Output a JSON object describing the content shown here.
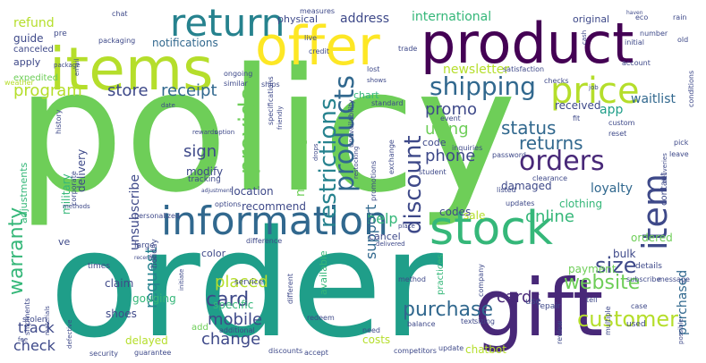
{
  "palette": {
    "background": "#ffffff",
    "colors": [
      "#6ece58",
      "#fde725",
      "#1f9e89",
      "#35b779",
      "#482878",
      "#3e4989",
      "#31688e",
      "#26828e",
      "#b5de2b",
      "#440154"
    ]
  },
  "words": [
    {
      "text": "policy",
      "color": "#6ece58"
    },
    {
      "text": "order",
      "color": "#1f9e89"
    },
    {
      "text": "product",
      "color": "#440154"
    },
    {
      "text": "items",
      "color": "#b5de2b"
    },
    {
      "text": "offer",
      "color": "#fde725"
    },
    {
      "text": "information",
      "color": "#31688e"
    },
    {
      "text": "gift",
      "color": "#482878"
    },
    {
      "text": "stock",
      "color": "#35b779"
    },
    {
      "text": "return",
      "color": "#26828e"
    },
    {
      "text": "price",
      "color": "#b5de2b"
    },
    {
      "text": "item",
      "color": "#3e4989"
    },
    {
      "text": "orders",
      "color": "#482878"
    },
    {
      "text": "products",
      "color": "#31688e"
    },
    {
      "text": "discount",
      "color": "#3e4989"
    },
    {
      "text": "shipping",
      "color": "#31688e"
    },
    {
      "text": "provide",
      "color": "#6ece58"
    },
    {
      "text": "restrictions",
      "color": "#26828e"
    },
    {
      "text": "warranty",
      "color": "#35b779"
    },
    {
      "text": "customer",
      "color": "#b5de2b"
    },
    {
      "text": "size",
      "color": "#3e4989"
    },
    {
      "text": "purchase",
      "color": "#31688e"
    },
    {
      "text": "website",
      "color": "#6ece58"
    },
    {
      "text": "card",
      "color": "#3e4989"
    },
    {
      "text": "change",
      "color": "#3e4989"
    },
    {
      "text": "returns",
      "color": "#31688e"
    },
    {
      "text": "status",
      "color": "#31688e"
    },
    {
      "text": "promo",
      "color": "#3e4989"
    },
    {
      "text": "using",
      "color": "#6ece58"
    },
    {
      "text": "cards",
      "color": "#482878"
    },
    {
      "text": "online",
      "color": "#35b779"
    },
    {
      "text": "program",
      "color": "#b5de2b"
    },
    {
      "text": "sign",
      "color": "#3e4989"
    },
    {
      "text": "store",
      "color": "#3e4989"
    },
    {
      "text": "receipt",
      "color": "#31688e"
    },
    {
      "text": "phone",
      "color": "#3e4989"
    },
    {
      "text": "placed",
      "color": "#b5de2b"
    },
    {
      "text": "request",
      "color": "#26828e"
    },
    {
      "text": "mobile",
      "color": "#3e4989"
    },
    {
      "text": "track",
      "color": "#3e4989"
    },
    {
      "text": "check",
      "color": "#3e4989"
    },
    {
      "text": "help",
      "color": "#35b779"
    },
    {
      "text": "support",
      "color": "#31688e"
    },
    {
      "text": "purchased",
      "color": "#31688e"
    },
    {
      "text": "newsletter",
      "color": "#b5de2b"
    },
    {
      "text": "unsubscribe",
      "color": "#3e4989"
    },
    {
      "text": "matching",
      "color": "#6ece58"
    },
    {
      "text": "address",
      "color": "#3e4989"
    },
    {
      "text": "international",
      "color": "#35b779"
    },
    {
      "text": "refund",
      "color": "#b5de2b"
    },
    {
      "text": "guide",
      "color": "#3e4989"
    },
    {
      "text": "notifications",
      "color": "#31688e"
    },
    {
      "text": "app",
      "color": "#1f9e89"
    },
    {
      "text": "waitlist",
      "color": "#31688e"
    },
    {
      "text": "received",
      "color": "#3e4989"
    },
    {
      "text": "loyalty",
      "color": "#31688e"
    },
    {
      "text": "clothing",
      "color": "#35b779"
    },
    {
      "text": "ordered",
      "color": "#6ece58"
    },
    {
      "text": "bulk",
      "color": "#3e4989"
    },
    {
      "text": "payment",
      "color": "#6ece58"
    },
    {
      "text": "codes",
      "color": "#3e4989"
    },
    {
      "text": "sale",
      "color": "#b5de2b"
    },
    {
      "text": "damaged",
      "color": "#3e4989"
    },
    {
      "text": "location",
      "color": "#3e4989"
    },
    {
      "text": "modify",
      "color": "#3e4989"
    },
    {
      "text": "specific",
      "color": "#35b779"
    },
    {
      "text": "recommend",
      "color": "#3e4989"
    },
    {
      "text": "delayed",
      "color": "#b5de2b"
    },
    {
      "text": "claim",
      "color": "#3e4989"
    },
    {
      "text": "gouging",
      "color": "#35b779"
    },
    {
      "text": "shoes",
      "color": "#3e4989"
    },
    {
      "text": "delivery",
      "color": "#3e4989"
    },
    {
      "text": "military",
      "color": "#35b779"
    },
    {
      "text": "adjustments",
      "color": "#35b779"
    },
    {
      "text": "apply",
      "color": "#3e4989"
    },
    {
      "text": "expedited",
      "color": "#6ece58"
    },
    {
      "text": "canceled",
      "color": "#3e4989"
    },
    {
      "text": "weather",
      "color": "#b5de2b"
    },
    {
      "text": "physical",
      "color": "#3e4989"
    },
    {
      "text": "original",
      "color": "#3e4989"
    },
    {
      "text": "chart",
      "color": "#35b779"
    },
    {
      "text": "code",
      "color": "#3e4989"
    },
    {
      "text": "color",
      "color": "#3e4989"
    },
    {
      "text": "cancel",
      "color": "#3e4989"
    },
    {
      "text": "costs",
      "color": "#b5de2b"
    },
    {
      "text": "chatbot",
      "color": "#b5de2b"
    },
    {
      "text": "available",
      "color": "#35b779"
    },
    {
      "text": "contact",
      "color": "#3e4989"
    },
    {
      "text": "details",
      "color": "#3e4989"
    },
    {
      "text": "ve",
      "color": "#3e4989"
    },
    {
      "text": "times",
      "color": "#3e4989"
    },
    {
      "text": "large",
      "color": "#3e4989"
    },
    {
      "text": "holiday",
      "color": "#3e4989"
    },
    {
      "text": "service",
      "color": "#3e4989"
    },
    {
      "text": "add",
      "color": "#6ece58"
    },
    {
      "text": "stolen",
      "color": "#3e4989"
    },
    {
      "text": "security",
      "color": "#3e4989"
    },
    {
      "text": "guarantee",
      "color": "#3e4989"
    },
    {
      "text": "discounts",
      "color": "#3e4989"
    },
    {
      "text": "accept",
      "color": "#3e4989"
    },
    {
      "text": "competitors",
      "color": "#3e4989"
    },
    {
      "text": "update",
      "color": "#3e4989"
    },
    {
      "text": "need",
      "color": "#3e4989"
    },
    {
      "text": "method",
      "color": "#3e4989"
    },
    {
      "text": "practices",
      "color": "#35b779"
    },
    {
      "text": "repair",
      "color": "#3e4989"
    },
    {
      "text": "use",
      "color": "#3e4989"
    },
    {
      "text": "used",
      "color": "#3e4989"
    },
    {
      "text": "multiple",
      "color": "#3e4989"
    },
    {
      "text": "sizing",
      "color": "#3e4989"
    },
    {
      "text": "balance",
      "color": "#3e4989"
    },
    {
      "text": "text",
      "color": "#3e4989"
    },
    {
      "text": "company",
      "color": "#3e4989"
    },
    {
      "text": "different",
      "color": "#3e4989"
    },
    {
      "text": "redeem",
      "color": "#3e4989"
    },
    {
      "text": "standard",
      "color": "#3e4989"
    },
    {
      "text": "trade",
      "color": "#3e4989"
    },
    {
      "text": "lost",
      "color": "#3e4989"
    },
    {
      "text": "shows",
      "color": "#3e4989"
    },
    {
      "text": "ongoing",
      "color": "#3e4989"
    },
    {
      "text": "similar",
      "color": "#3e4989"
    },
    {
      "text": "ships",
      "color": "#3e4989"
    },
    {
      "text": "specifications",
      "color": "#3e4989"
    },
    {
      "text": "friendly",
      "color": "#3e4989"
    },
    {
      "text": "measures",
      "color": "#3e4989"
    },
    {
      "text": "live",
      "color": "#3e4989"
    },
    {
      "text": "credit",
      "color": "#3e4989"
    },
    {
      "text": "packaging",
      "color": "#3e4989"
    },
    {
      "text": "chat",
      "color": "#3e4989"
    },
    {
      "text": "pre",
      "color": "#3e4989"
    },
    {
      "text": "email",
      "color": "#3e4989"
    },
    {
      "text": "package",
      "color": "#3e4989"
    },
    {
      "text": "date",
      "color": "#3e4989"
    },
    {
      "text": "history",
      "color": "#3e4989"
    },
    {
      "text": "subscribe",
      "color": "#3e4989"
    },
    {
      "text": "option",
      "color": "#3e4989"
    },
    {
      "text": "corporate",
      "color": "#3e4989"
    },
    {
      "text": "methods",
      "color": "#3e4989"
    },
    {
      "text": "personalized",
      "color": "#3e4989"
    },
    {
      "text": "options",
      "color": "#3e4989"
    },
    {
      "text": "difference",
      "color": "#3e4989"
    },
    {
      "text": "recently",
      "color": "#3e4989"
    },
    {
      "text": "initiate",
      "color": "#3e4989"
    },
    {
      "text": "additional",
      "color": "#3e4989"
    },
    {
      "text": "materials",
      "color": "#3e4989"
    },
    {
      "text": "shipments",
      "color": "#3e4989"
    },
    {
      "text": "defective",
      "color": "#3e4989"
    },
    {
      "text": "fee",
      "color": "#3e4989"
    },
    {
      "text": "rewards",
      "color": "#3e4989"
    },
    {
      "text": "tracking",
      "color": "#3e4989"
    },
    {
      "text": "adjustment",
      "color": "#3e4989"
    },
    {
      "text": "drops",
      "color": "#3e4989"
    },
    {
      "text": "restocking",
      "color": "#3e4989"
    },
    {
      "text": "unavailability",
      "color": "#3e4989"
    },
    {
      "text": "promotions",
      "color": "#3e4989"
    },
    {
      "text": "exchange",
      "color": "#3e4989"
    },
    {
      "text": "student",
      "color": "#3e4989"
    },
    {
      "text": "inquiries",
      "color": "#3e4989"
    },
    {
      "text": "password",
      "color": "#3e4989"
    },
    {
      "text": "listed",
      "color": "#3e4989"
    },
    {
      "text": "updates",
      "color": "#3e4989"
    },
    {
      "text": "clearance",
      "color": "#3e4989"
    },
    {
      "text": "event",
      "color": "#3e4989"
    },
    {
      "text": "checks",
      "color": "#3e4989"
    },
    {
      "text": "satisfaction",
      "color": "#3e4989"
    },
    {
      "text": "account",
      "color": "#3e4989"
    },
    {
      "text": "job",
      "color": "#3e4989"
    },
    {
      "text": "fit",
      "color": "#3e4989"
    },
    {
      "text": "custom",
      "color": "#3e4989"
    },
    {
      "text": "reset",
      "color": "#3e4989"
    },
    {
      "text": "conditions",
      "color": "#3e4989"
    },
    {
      "text": "pick",
      "color": "#3e4989"
    },
    {
      "text": "leave",
      "color": "#3e4989"
    },
    {
      "text": "deliveries",
      "color": "#3e4989"
    },
    {
      "text": "possible",
      "color": "#3e4989"
    },
    {
      "text": "message",
      "color": "#3e4989"
    },
    {
      "text": "tell",
      "color": "#3e4989"
    },
    {
      "text": "case",
      "color": "#3e4989"
    },
    {
      "text": "review",
      "color": "#3e4989"
    },
    {
      "text": "place",
      "color": "#3e4989"
    },
    {
      "text": "delivered",
      "color": "#3e4989"
    },
    {
      "text": "eco",
      "color": "#3e4989"
    },
    {
      "text": "rain",
      "color": "#3e4989"
    },
    {
      "text": "number",
      "color": "#3e4989"
    },
    {
      "text": "initial",
      "color": "#3e4989"
    },
    {
      "text": "old",
      "color": "#3e4989"
    },
    {
      "text": "cash",
      "color": "#3e4989"
    },
    {
      "text": "haven",
      "color": "#3e4989"
    }
  ]
}
